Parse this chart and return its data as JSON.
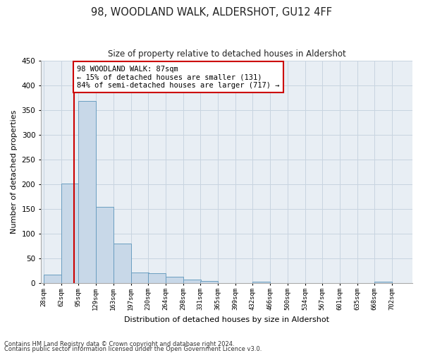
{
  "title": "98, WOODLAND WALK, ALDERSHOT, GU12 4FF",
  "subtitle": "Size of property relative to detached houses in Aldershot",
  "xlabel": "Distribution of detached houses by size in Aldershot",
  "ylabel": "Number of detached properties",
  "bin_edges": [
    28,
    62,
    95,
    129,
    163,
    197,
    230,
    264,
    298,
    331,
    365,
    399,
    432,
    466,
    500,
    534,
    567,
    601,
    635,
    668,
    702
  ],
  "bar_heights": [
    18,
    202,
    368,
    155,
    80,
    22,
    21,
    13,
    7,
    5,
    0,
    0,
    4,
    0,
    0,
    0,
    0,
    0,
    0,
    4
  ],
  "bar_color": "#c8d8e8",
  "bar_edge_color": "#6a9ec0",
  "grid_color": "#c8d4e0",
  "background_color": "#e8eef4",
  "vline_x": 87,
  "vline_color": "#cc0000",
  "annotation_line1": "98 WOODLAND WALK: 87sqm",
  "annotation_line2": "← 15% of detached houses are smaller (131)",
  "annotation_line3": "84% of semi-detached houses are larger (717) →",
  "annotation_box_color": "#cc0000",
  "ylim": [
    0,
    450
  ],
  "yticks": [
    0,
    50,
    100,
    150,
    200,
    250,
    300,
    350,
    400,
    450
  ],
  "footnote1": "Contains HM Land Registry data © Crown copyright and database right 2024.",
  "footnote2": "Contains public sector information licensed under the Open Government Licence v3.0."
}
